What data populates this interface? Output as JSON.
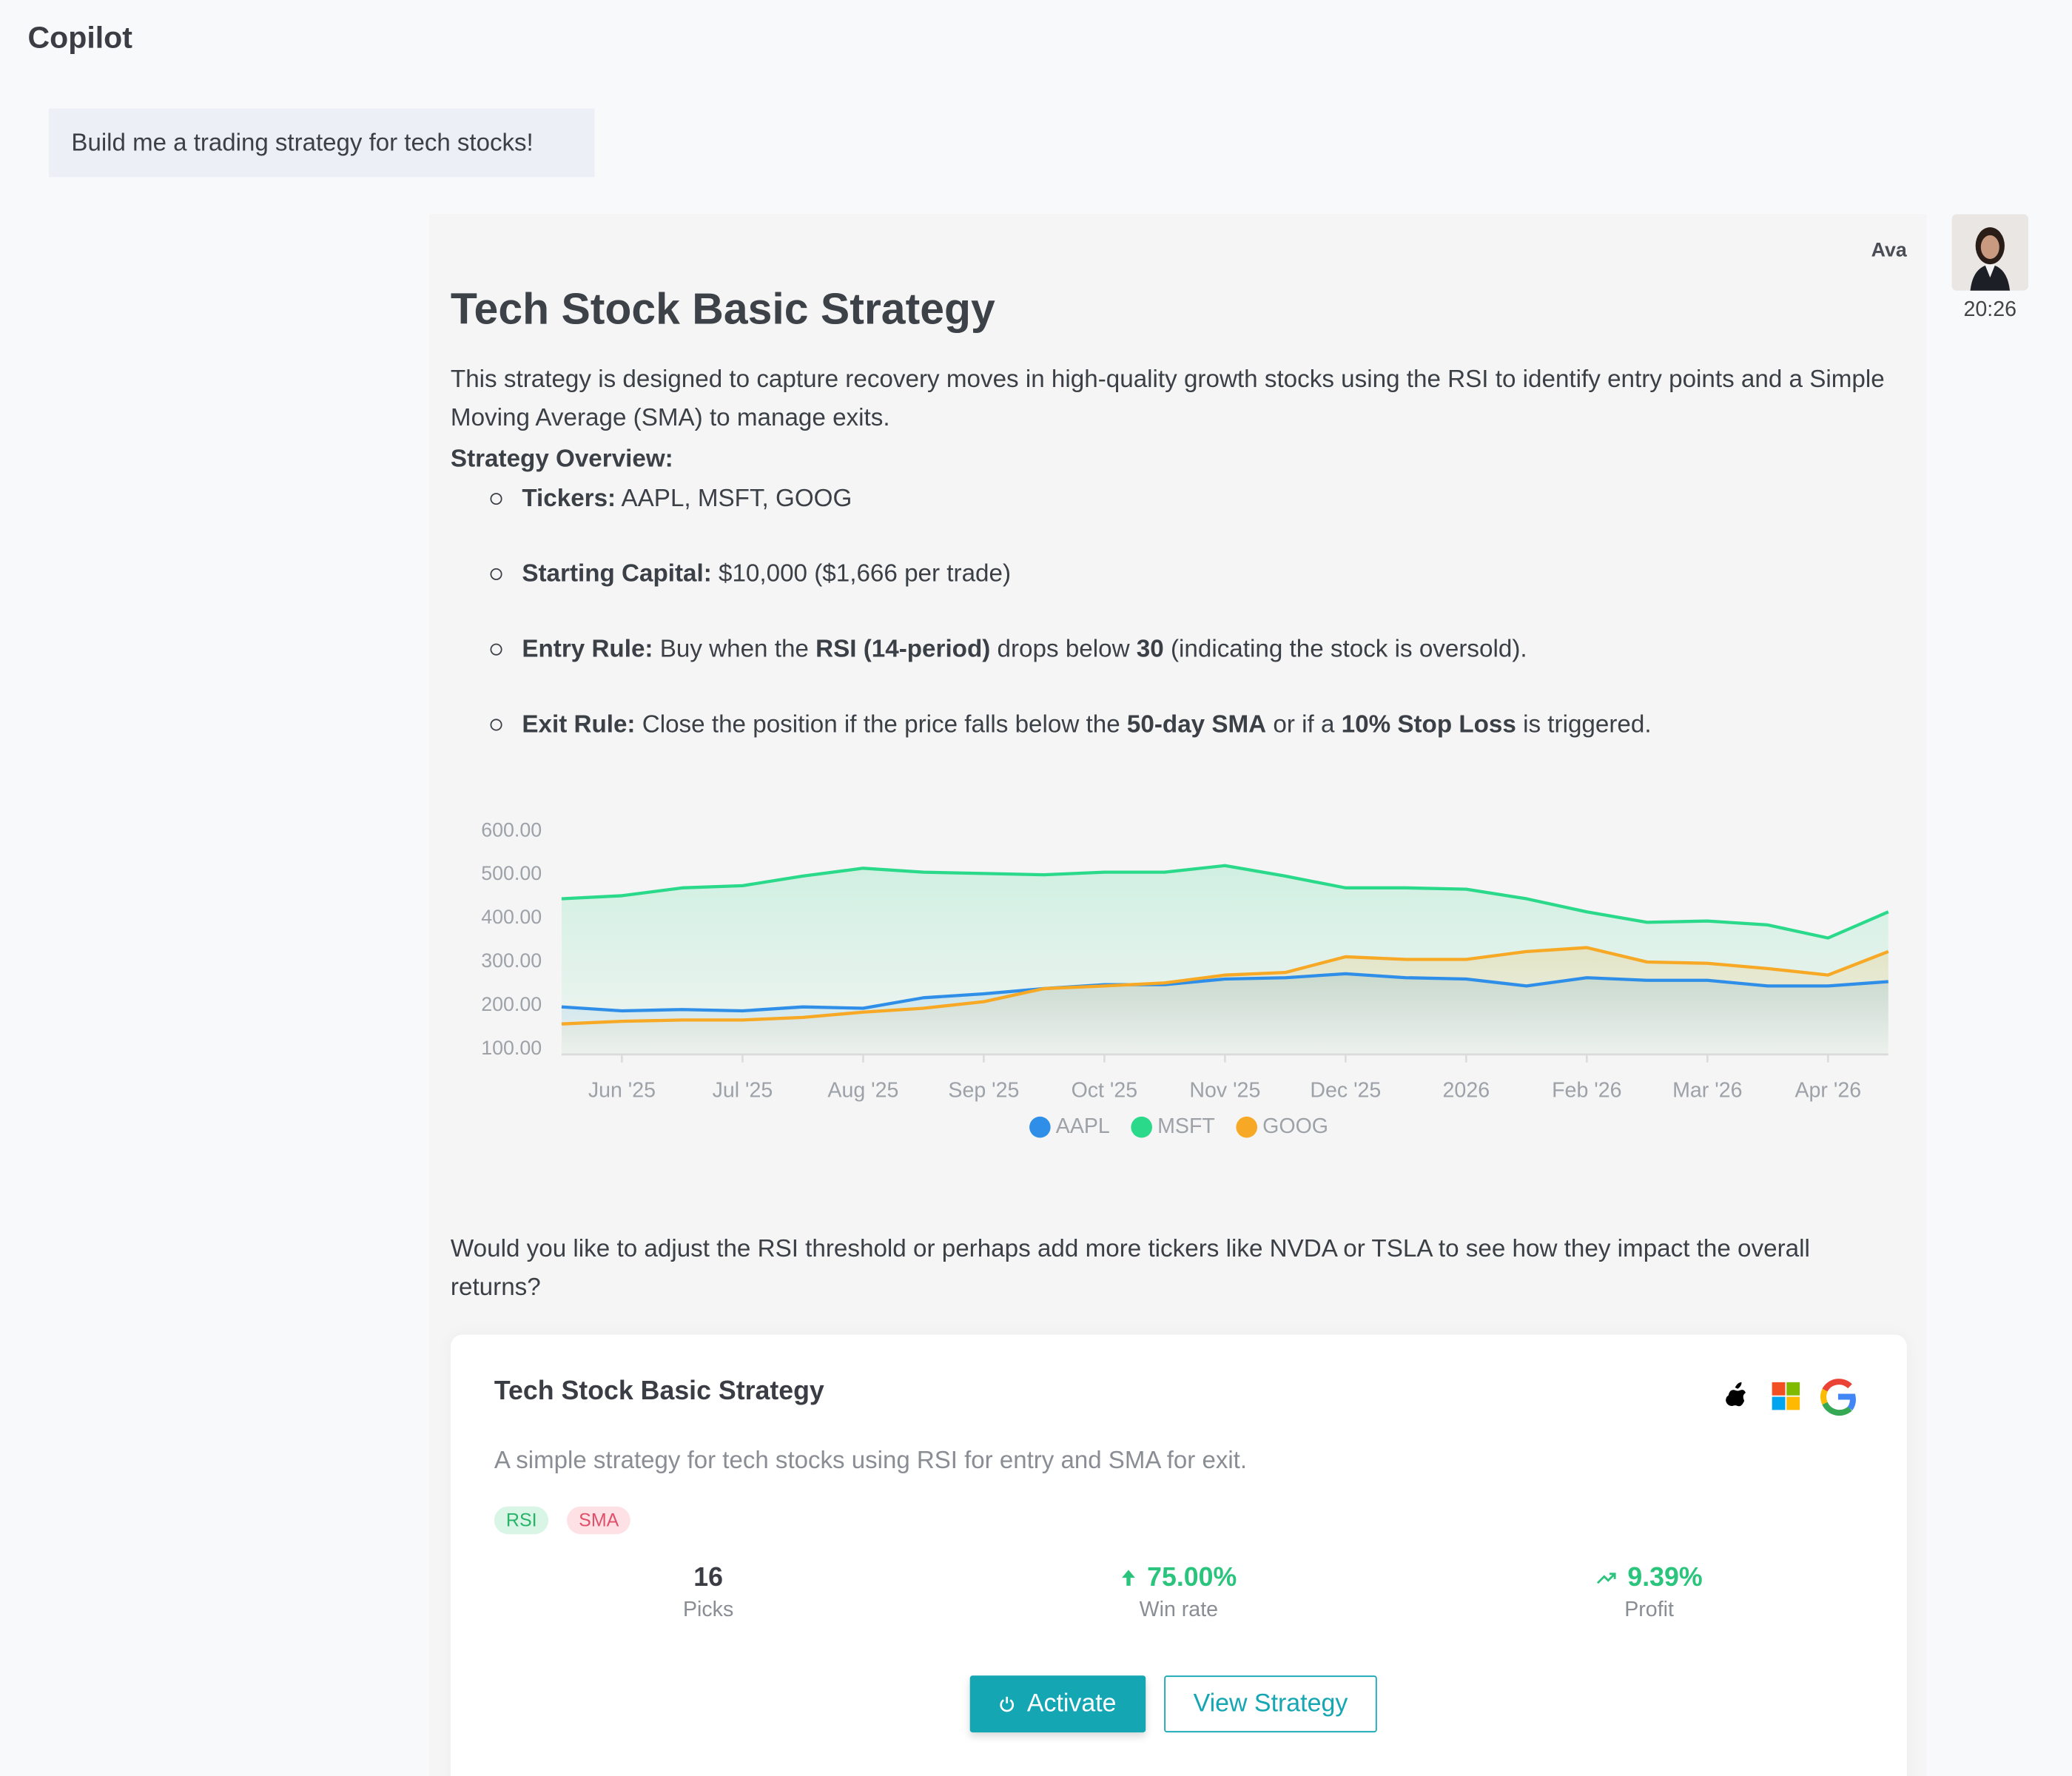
{
  "header": {
    "title": "Copilot"
  },
  "user_message": {
    "text": "Build me a trading strategy for tech stocks!"
  },
  "assistant_message": {
    "sender": "Ava",
    "time": "20:26",
    "title": "Tech Stock Basic Strategy",
    "intro": "This strategy is designed to capture recovery moves in high-quality growth stocks using the RSI to identify entry points and a Simple Moving Average (SMA) to manage exits.",
    "overview_heading": "Strategy Overview:",
    "bullets": [
      [
        {
          "text": "Tickers:",
          "bold": true
        },
        {
          "text": " AAPL, MSFT, GOOG"
        }
      ],
      [
        {
          "text": "Starting Capital:",
          "bold": true
        },
        {
          "text": " $10,000 ($1,666 per trade)"
        }
      ],
      [
        {
          "text": "Entry Rule:",
          "bold": true
        },
        {
          "text": " Buy when the "
        },
        {
          "text": "RSI (14-period)",
          "bold": true
        },
        {
          "text": " drops below "
        },
        {
          "text": "30",
          "bold": true
        },
        {
          "text": " (indicating the stock is oversold)."
        }
      ],
      [
        {
          "text": "Exit Rule:",
          "bold": true
        },
        {
          "text": " Close the position if the price falls below the "
        },
        {
          "text": "50-day SMA",
          "bold": true
        },
        {
          "text": " or if a "
        },
        {
          "text": "10% Stop Loss",
          "bold": true
        },
        {
          "text": " is triggered."
        }
      ]
    ],
    "follow_up": "Would you like to adjust the RSI threshold or perhaps add more tickers like NVDA or TSLA to see how they impact the overall returns?"
  },
  "chart_data": {
    "type": "line",
    "categories": [
      null,
      "Jun '25",
      null,
      "Jul '25",
      null,
      "Aug '25",
      null,
      "Sep '25",
      null,
      "Oct '25",
      null,
      "Nov '25",
      null,
      "Dec '25",
      null,
      "2026",
      null,
      "Feb '26",
      null,
      "Mar '26",
      null,
      "Apr '26",
      null
    ],
    "series": [
      {
        "name": "AAPL",
        "color": "#2f8fe8",
        "values": [
          197,
          188,
          191,
          188,
          197,
          194,
          218,
          227,
          239,
          248,
          248,
          261,
          264,
          273,
          264,
          261,
          245,
          264,
          258,
          258,
          245,
          245,
          255
        ]
      },
      {
        "name": "MSFT",
        "color": "#2bd98a",
        "values": [
          445,
          452,
          470,
          475,
          497,
          515,
          506,
          503,
          500,
          506,
          506,
          521,
          497,
          470,
          470,
          467,
          445,
          415,
          391,
          394,
          385,
          355,
          415
        ]
      },
      {
        "name": "GOOG",
        "color": "#f7a824",
        "values": [
          158,
          164,
          167,
          167,
          173,
          185,
          194,
          209,
          239,
          245,
          252,
          270,
          276,
          312,
          306,
          306,
          324,
          333,
          300,
          297,
          285,
          270,
          324
        ]
      }
    ],
    "ylim": [
      100,
      600
    ],
    "yticks": [
      {
        "value": 100,
        "label": "100.00"
      },
      {
        "value": 200,
        "label": "200.00"
      },
      {
        "value": 300,
        "label": "300.00"
      },
      {
        "value": 400,
        "label": "400.00"
      },
      {
        "value": 500,
        "label": "500.00"
      },
      {
        "value": 600,
        "label": "600.00"
      }
    ],
    "grid": false,
    "area": true,
    "legend": "bottom"
  },
  "strategy_card": {
    "title": "Tech Stock Basic Strategy",
    "description": "A simple strategy for tech stocks using RSI for entry and SMA for exit.",
    "tags": [
      "RSI",
      "SMA"
    ],
    "stats": [
      {
        "value": 16,
        "label": "Picks"
      },
      {
        "value": "75.00%",
        "label": "Win rate"
      },
      {
        "value": "9.39%",
        "label": "Profit"
      }
    ],
    "buttons": [
      "Activate",
      "View Strategy"
    ]
  }
}
